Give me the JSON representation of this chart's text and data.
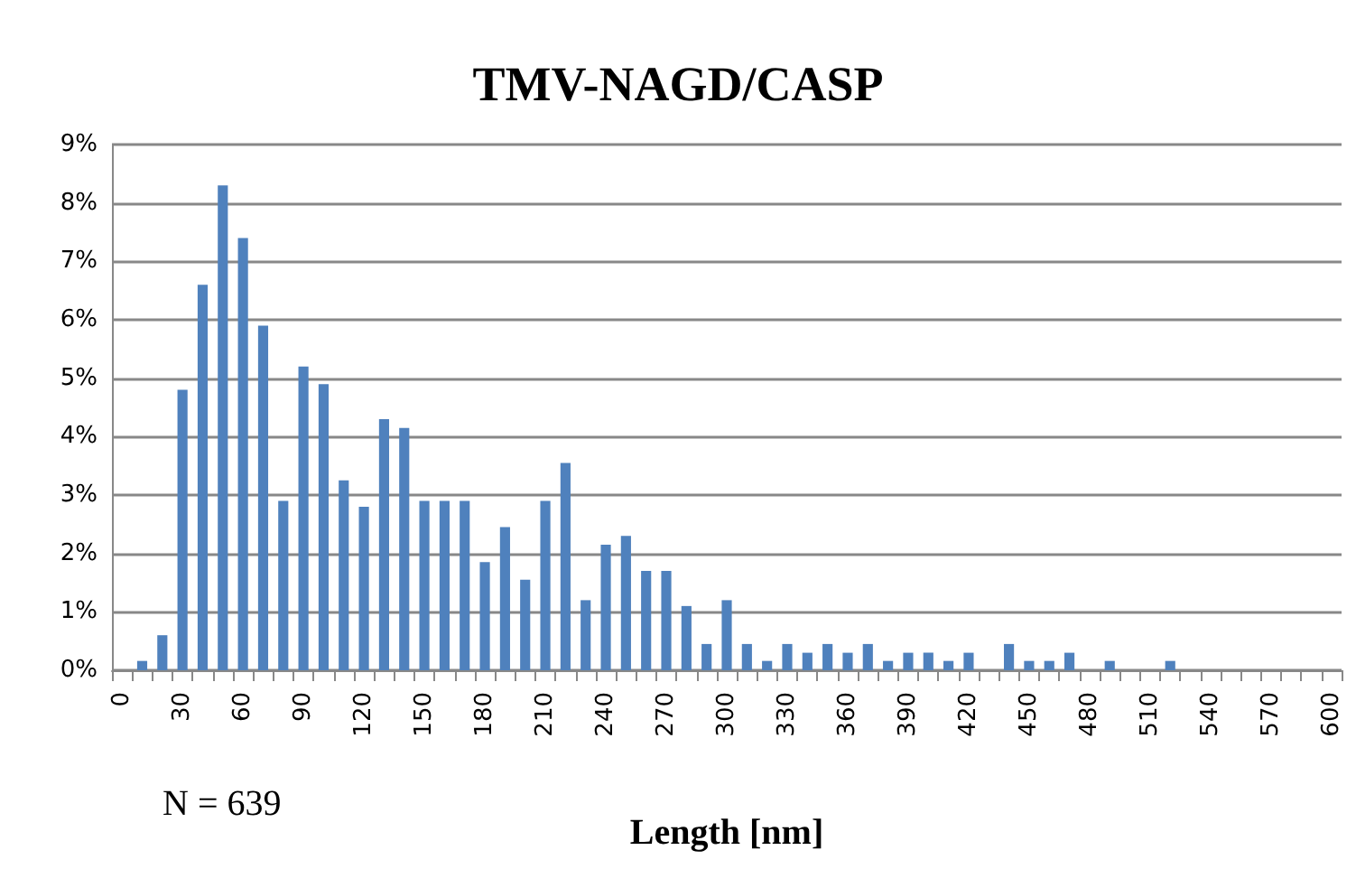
{
  "chart_data": {
    "type": "bar",
    "title": "TMV-NAGD/CASP",
    "xlabel": "Length [nm]",
    "annotations": [
      "N = 639"
    ],
    "categories": [
      "0",
      null,
      null,
      "30",
      null,
      null,
      "60",
      null,
      null,
      "90",
      null,
      null,
      "120",
      null,
      null,
      "150",
      null,
      null,
      "180",
      null,
      null,
      "210",
      null,
      null,
      "240",
      null,
      null,
      "270",
      null,
      null,
      "300",
      null,
      null,
      "330",
      null,
      null,
      "360",
      null,
      null,
      "390",
      null,
      null,
      "420",
      null,
      null,
      "450",
      null,
      null,
      "480",
      null,
      null,
      "510",
      null,
      null,
      "540",
      null,
      null,
      "570",
      null,
      null,
      "600"
    ],
    "values": [
      0,
      0.16,
      0.6,
      4.8,
      6.6,
      8.3,
      7.4,
      5.9,
      2.9,
      5.2,
      4.9,
      3.25,
      2.8,
      4.3,
      4.15,
      2.9,
      2.9,
      2.9,
      1.85,
      2.45,
      1.55,
      2.9,
      3.55,
      1.2,
      2.15,
      2.3,
      1.7,
      1.7,
      1.1,
      0.45,
      1.2,
      0.45,
      0.16,
      0.45,
      0.3,
      0.45,
      0.3,
      0.45,
      0.16,
      0.3,
      0.3,
      0.16,
      0.3,
      0,
      0.45,
      0.16,
      0.16,
      0.3,
      0,
      0.16,
      0,
      0,
      0.16,
      0,
      0,
      0,
      0,
      0,
      0,
      0,
      0
    ],
    "color": "#4f81bd",
    "ylim": [
      0,
      9
    ],
    "yticks": [
      {
        "value": 0,
        "label": "0%"
      },
      {
        "value": 1,
        "label": "1%"
      },
      {
        "value": 2,
        "label": "2%"
      },
      {
        "value": 3,
        "label": "3%"
      },
      {
        "value": 4,
        "label": "4%"
      },
      {
        "value": 5,
        "label": "5%"
      },
      {
        "value": 6,
        "label": "6%"
      },
      {
        "value": 7,
        "label": "7%"
      },
      {
        "value": 8,
        "label": "8%"
      },
      {
        "value": 9,
        "label": "9%"
      }
    ],
    "grid": "y"
  }
}
